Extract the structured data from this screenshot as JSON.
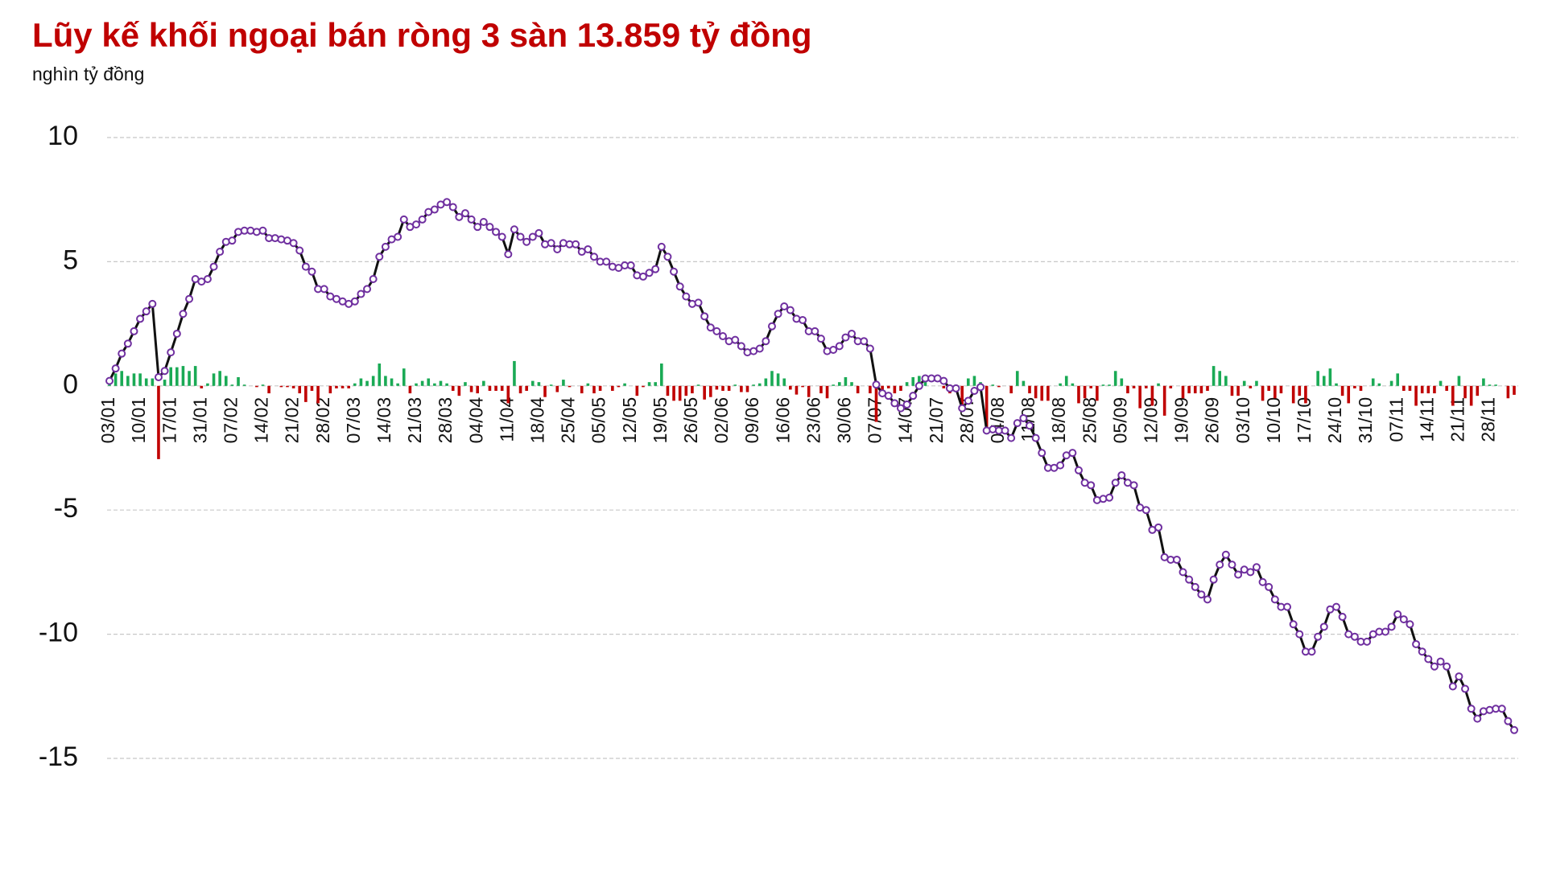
{
  "chart_data": {
    "type": "combo",
    "title": "Lũy kế khối ngoại bán ròng 3 sàn 13.859 tỷ đồng",
    "subtitle": "nghìn tỷ đồng",
    "categories": [
      "03/01",
      null,
      null,
      null,
      null,
      "10/01",
      null,
      null,
      null,
      null,
      "17/01",
      null,
      null,
      null,
      null,
      "31/01",
      null,
      null,
      null,
      null,
      "07/02",
      null,
      null,
      null,
      null,
      "14/02",
      null,
      null,
      null,
      null,
      "21/02",
      null,
      null,
      null,
      null,
      "28/02",
      null,
      null,
      null,
      null,
      "07/03",
      null,
      null,
      null,
      null,
      "14/03",
      null,
      null,
      null,
      null,
      "21/03",
      null,
      null,
      null,
      null,
      "28/03",
      null,
      null,
      null,
      null,
      "04/04",
      null,
      null,
      null,
      null,
      "11/04",
      null,
      null,
      null,
      null,
      "18/04",
      null,
      null,
      null,
      null,
      "25/04",
      null,
      null,
      null,
      null,
      "05/05",
      null,
      null,
      null,
      null,
      "12/05",
      null,
      null,
      null,
      null,
      "19/05",
      null,
      null,
      null,
      null,
      "26/05",
      null,
      null,
      null,
      null,
      "02/06",
      null,
      null,
      null,
      null,
      "09/06",
      null,
      null,
      null,
      null,
      "16/06",
      null,
      null,
      null,
      null,
      "23/06",
      null,
      null,
      null,
      null,
      "30/06",
      null,
      null,
      null,
      null,
      "07/07",
      null,
      null,
      null,
      null,
      "14/07",
      null,
      null,
      null,
      null,
      "21/07",
      null,
      null,
      null,
      null,
      "28/07",
      null,
      null,
      null,
      null,
      "04/08",
      null,
      null,
      null,
      null,
      "11/08",
      null,
      null,
      null,
      null,
      "18/08",
      null,
      null,
      null,
      null,
      "25/08",
      null,
      null,
      null,
      null,
      "05/09",
      null,
      null,
      null,
      null,
      "12/09",
      null,
      null,
      null,
      null,
      "19/09",
      null,
      null,
      null,
      null,
      "26/09",
      null,
      null,
      null,
      null,
      "03/10",
      null,
      null,
      null,
      null,
      "10/10",
      null,
      null,
      null,
      null,
      "17/10",
      null,
      null,
      null,
      null,
      "24/10",
      null,
      null,
      null,
      null,
      "31/10",
      null,
      null,
      null,
      null,
      "07/11",
      null,
      null,
      null,
      null,
      "14/11",
      null,
      null,
      null,
      null,
      "21/11",
      null,
      null,
      null,
      null,
      "28/11",
      null,
      null,
      null,
      null
    ],
    "series": [
      {
        "type": "bar",
        "positive_color": "#1aaa55",
        "negative_color": "#c00000",
        "values": [
          0.2,
          0.5,
          0.6,
          0.4,
          0.5,
          0.5,
          0.3,
          0.3,
          -2.95,
          0.25,
          0.75,
          0.75,
          0.8,
          0.6,
          0.8,
          -0.1,
          0.1,
          0.5,
          0.6,
          0.4,
          0.05,
          0.35,
          0.05,
          0,
          -0.05,
          0.05,
          -0.3,
          0,
          -0.05,
          -0.05,
          -0.1,
          -0.3,
          -0.65,
          -0.2,
          -0.7,
          0,
          -0.3,
          -0.1,
          -0.1,
          -0.1,
          0.1,
          0.3,
          0.2,
          0.4,
          0.9,
          0.4,
          0.3,
          0.1,
          0.7,
          -0.3,
          0.1,
          0.2,
          0.3,
          0.1,
          0.2,
          0.1,
          -0.2,
          -0.4,
          0.15,
          -0.25,
          -0.3,
          0.2,
          -0.2,
          -0.2,
          -0.2,
          -0.7,
          1,
          -0.3,
          -0.2,
          0.2,
          0.15,
          -0.45,
          0.05,
          -0.25,
          0.25,
          -0.05,
          0,
          -0.3,
          0.1,
          -0.3,
          -0.2,
          0,
          -0.2,
          -0.05,
          0.1,
          0,
          -0.4,
          -0.05,
          0.15,
          0.15,
          0.9,
          -0.4,
          -0.6,
          -0.6,
          -0.4,
          -0.3,
          0.05,
          -0.55,
          -0.45,
          -0.15,
          -0.2,
          -0.2,
          0.05,
          -0.25,
          -0.25,
          0.05,
          0.1,
          0.3,
          0.6,
          0.5,
          0.3,
          -0.15,
          -0.35,
          -0.05,
          -0.45,
          0,
          -0.3,
          -0.5,
          0.05,
          0.15,
          0.35,
          0.15,
          -0.3,
          0,
          -0.3,
          -1.45,
          -0.35,
          -0.1,
          -0.3,
          -0.2,
          0.15,
          0.35,
          0.4,
          0.3,
          0,
          0,
          -0.1,
          -0.3,
          0,
          -0.8,
          0.3,
          0.4,
          0.15,
          -1.75,
          0.05,
          -0.05,
          0,
          -0.3,
          0.6,
          0.2,
          -0.3,
          -0.5,
          -0.6,
          -0.6,
          0,
          0.1,
          0.4,
          0.1,
          -0.7,
          -0.5,
          -0.1,
          -0.6,
          0.05,
          0.05,
          0.6,
          0.3,
          -0.3,
          -0.1,
          -0.9,
          -0.1,
          -0.8,
          0.1,
          -1.2,
          -0.1,
          0,
          -0.5,
          -0.3,
          -0.3,
          -0.3,
          -0.2,
          0.8,
          0.6,
          0.4,
          -0.4,
          -0.4,
          0.2,
          -0.1,
          0.2,
          -0.6,
          -0.2,
          -0.5,
          -0.3,
          0,
          -0.7,
          -0.4,
          -0.7,
          0,
          0.6,
          0.4,
          0.7,
          0.1,
          -0.4,
          -0.7,
          -0.1,
          -0.2,
          0,
          0.3,
          0.1,
          0,
          0.2,
          0.5,
          -0.2,
          -0.2,
          -0.8,
          -0.3,
          -0.3,
          -0.3,
          0.2,
          -0.2,
          -0.8,
          0.4,
          -0.5,
          -0.8,
          -0.4,
          0.3,
          0.05,
          0.05,
          0,
          -0.5,
          -0.36
        ]
      },
      {
        "type": "line",
        "color": "#111111",
        "marker_color": "#7030a0",
        "values": [
          0.2,
          0.7,
          1.3,
          1.7,
          2.2,
          2.7,
          3.0,
          3.3,
          0.35,
          0.6,
          1.35,
          2.1,
          2.9,
          3.5,
          4.3,
          4.2,
          4.3,
          4.8,
          5.4,
          5.8,
          5.85,
          6.2,
          6.25,
          6.25,
          6.2,
          6.25,
          5.95,
          5.95,
          5.9,
          5.85,
          5.75,
          5.45,
          4.8,
          4.6,
          3.9,
          3.9,
          3.6,
          3.5,
          3.4,
          3.3,
          3.4,
          3.7,
          3.9,
          4.3,
          5.2,
          5.6,
          5.9,
          6.0,
          6.7,
          6.4,
          6.5,
          6.7,
          7.0,
          7.1,
          7.3,
          7.4,
          7.2,
          6.8,
          6.95,
          6.7,
          6.4,
          6.6,
          6.4,
          6.2,
          6.0,
          5.3,
          6.3,
          6.0,
          5.8,
          6.0,
          6.15,
          5.7,
          5.75,
          5.5,
          5.75,
          5.7,
          5.7,
          5.4,
          5.5,
          5.2,
          5.0,
          5.0,
          4.8,
          4.75,
          4.85,
          4.85,
          4.45,
          4.4,
          4.55,
          4.7,
          5.6,
          5.2,
          4.6,
          4.0,
          3.6,
          3.3,
          3.35,
          2.8,
          2.35,
          2.2,
          2.0,
          1.8,
          1.85,
          1.6,
          1.35,
          1.4,
          1.5,
          1.8,
          2.4,
          2.9,
          3.2,
          3.05,
          2.7,
          2.65,
          2.2,
          2.2,
          1.9,
          1.4,
          1.45,
          1.6,
          1.95,
          2.1,
          1.8,
          1.8,
          1.5,
          0.05,
          -0.3,
          -0.4,
          -0.7,
          -0.9,
          -0.75,
          -0.4,
          0.0,
          0.3,
          0.3,
          0.3,
          0.2,
          -0.1,
          -0.1,
          -0.9,
          -0.6,
          -0.2,
          -0.05,
          -1.8,
          -1.75,
          -1.8,
          -1.8,
          -2.1,
          -1.5,
          -1.3,
          -1.6,
          -2.1,
          -2.7,
          -3.3,
          -3.3,
          -3.2,
          -2.8,
          -2.7,
          -3.4,
          -3.9,
          -4.0,
          -4.6,
          -4.55,
          -4.5,
          -3.9,
          -3.6,
          -3.9,
          -4.0,
          -4.9,
          -5.0,
          -5.8,
          -5.7,
          -6.9,
          -7.0,
          -7.0,
          -7.5,
          -7.8,
          -8.1,
          -8.4,
          -8.6,
          -7.8,
          -7.2,
          -6.8,
          -7.2,
          -7.6,
          -7.4,
          -7.5,
          -7.3,
          -7.9,
          -8.1,
          -8.6,
          -8.9,
          -8.9,
          -9.6,
          -10.0,
          -10.7,
          -10.7,
          -10.1,
          -9.7,
          -9.0,
          -8.9,
          -9.3,
          -10.0,
          -10.1,
          -10.3,
          -10.3,
          -10.0,
          -9.9,
          -9.9,
          -9.7,
          -9.2,
          -9.4,
          -9.6,
          -10.4,
          -10.7,
          -11.0,
          -11.3,
          -11.1,
          -11.3,
          -12.1,
          -11.7,
          -12.2,
          -13.0,
          -13.4,
          -13.1,
          -13.05,
          -13.0,
          -13.0,
          -13.5,
          -13.86
        ]
      }
    ],
    "ylim": [
      -15,
      10
    ],
    "yticks": [
      -15,
      -10,
      -5,
      0,
      5,
      10
    ],
    "grid": true
  }
}
